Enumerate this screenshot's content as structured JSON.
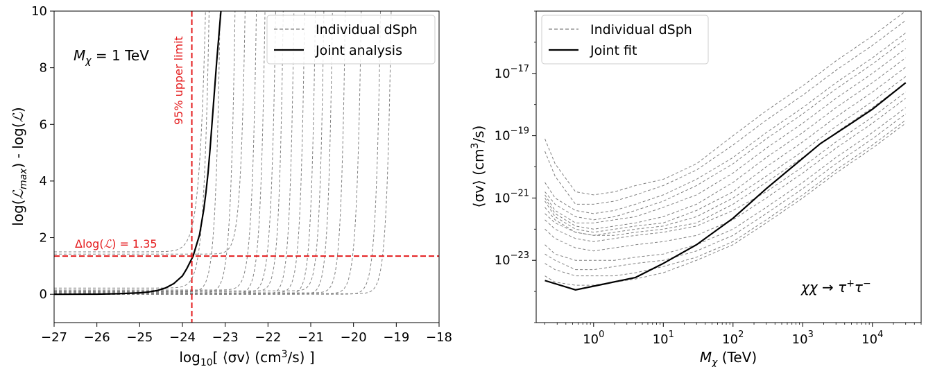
{
  "chart_data": [
    {
      "type": "line",
      "xlabel_parts": [
        "log",
        "10",
        "[ ⟨σv⟩ (cm",
        "3",
        "/s) ]"
      ],
      "ylabel_parts": [
        "log(",
        "ℒ",
        "max",
        ") - log(",
        "ℒ",
        ")"
      ],
      "xlim": [
        -27,
        -18
      ],
      "ylim": [
        -1,
        10
      ],
      "x_ticks": [
        -27,
        -26,
        -25,
        -24,
        -23,
        -22,
        -21,
        -20,
        -19,
        -18
      ],
      "x_tick_labels": [
        "−27",
        "−26",
        "−25",
        "−24",
        "−23",
        "−22",
        "−21",
        "−20",
        "−19",
        "−18"
      ],
      "y_ticks": [
        0,
        2,
        4,
        6,
        8,
        10
      ],
      "y_tick_labels": [
        "0",
        "2",
        "4",
        "6",
        "8",
        "10"
      ],
      "grid": false,
      "legend_position": "top-right",
      "annotations": {
        "mass_parts": [
          "M",
          "χ",
          " = 1 TeV"
        ],
        "delta_parts": [
          "Δlog(",
          "ℒ",
          ") = 1.35"
        ],
        "upper_limit": "95% upper limit"
      },
      "reference_lines": {
        "horizontal": 1.35,
        "vertical": -23.78,
        "color": "#e41a1c"
      },
      "series": [
        {
          "name": "Individual dSph",
          "style": "dashed",
          "color": "#808080",
          "curves": [
            {
              "c": -23.76,
              "w": 0.14,
              "y0": 1.5
            },
            {
              "c": -23.65,
              "w": 0.12,
              "y0": 0.22
            },
            {
              "c": -23.35,
              "w": 0.1,
              "y0": 0.08
            },
            {
              "c": -23.0,
              "w": 0.1,
              "y0": 0.05
            },
            {
              "c": -22.75,
              "w": 0.1,
              "y0": 1.42
            },
            {
              "c": -22.5,
              "w": 0.1,
              "y0": 0.15
            },
            {
              "c": -22.3,
              "w": 0.1,
              "y0": 0.0
            },
            {
              "c": -22.05,
              "w": 0.1,
              "y0": 0.05
            },
            {
              "c": -21.85,
              "w": 0.09,
              "y0": 0.1
            },
            {
              "c": -21.6,
              "w": 0.09,
              "y0": 0.0
            },
            {
              "c": -21.35,
              "w": 0.09,
              "y0": 0.05
            },
            {
              "c": -21.1,
              "w": 0.09,
              "y0": 0.0
            },
            {
              "c": -20.9,
              "w": 0.09,
              "y0": 0.12
            },
            {
              "c": -20.7,
              "w": 0.09,
              "y0": 0.0
            },
            {
              "c": -20.4,
              "w": 0.09,
              "y0": 0.05
            },
            {
              "c": -20.05,
              "w": 0.1,
              "y0": 0.02
            },
            {
              "c": -19.6,
              "w": 0.1,
              "y0": 0.0
            },
            {
              "c": -19.35,
              "w": 0.1,
              "y0": 0.02
            }
          ]
        },
        {
          "name": "Joint analysis",
          "style": "solid",
          "color": "#000000",
          "x": [
            -27,
            -26,
            -25.5,
            -25,
            -24.8,
            -24.6,
            -24.4,
            -24.2,
            -24.0,
            -23.9,
            -23.8,
            -23.75,
            -23.7,
            -23.6,
            -23.5,
            -23.45,
            -23.4,
            -23.35,
            -23.3,
            -23.2,
            -23.1
          ],
          "y": [
            0,
            0.005,
            0.02,
            0.05,
            0.08,
            0.13,
            0.22,
            0.38,
            0.65,
            0.9,
            1.2,
            1.35,
            1.6,
            2.1,
            3.0,
            3.6,
            4.3,
            5.2,
            6.2,
            8.2,
            10.0
          ]
        }
      ]
    },
    {
      "type": "line",
      "xscale": "log",
      "yscale": "log",
      "xlabel_parts": [
        "M",
        "χ",
        " (TeV)"
      ],
      "ylabel_parts": [
        "⟨σv⟩ (cm",
        "3",
        "/s)"
      ],
      "xlim": [
        0.15,
        50000
      ],
      "ylim": [
        1e-25,
        1e-15
      ],
      "x_tick_exponents": [
        0,
        1,
        2,
        3,
        4
      ],
      "y_tick_exponents": [
        -23,
        -21,
        -19,
        -17
      ],
      "x_tick_labels": [
        {
          "base": "10",
          "exp": "0"
        },
        {
          "base": "10",
          "exp": "1"
        },
        {
          "base": "10",
          "exp": "2"
        },
        {
          "base": "10",
          "exp": "3"
        },
        {
          "base": "10",
          "exp": "4"
        }
      ],
      "y_tick_labels": [
        {
          "base": "10",
          "exp": "−23"
        },
        {
          "base": "10",
          "exp": "−21"
        },
        {
          "base": "10",
          "exp": "−19"
        },
        {
          "base": "10",
          "exp": "−17"
        }
      ],
      "grid": false,
      "legend_position": "top-left",
      "annotation_parts": [
        "χχ → τ",
        "+",
        "τ",
        "−"
      ],
      "series": [
        {
          "name": "Individual dSph",
          "style": "dashed",
          "color": "#808080",
          "x": [
            0.2,
            0.28,
            0.55,
            1,
            2,
            4,
            10,
            30,
            100,
            300,
            1000,
            3000,
            10000,
            30000
          ],
          "curves_log10_y": [
            [
              -19.1,
              -19.9,
              -20.8,
              -20.9,
              -20.8,
              -20.6,
              -20.4,
              -19.9,
              -19.0,
              -18.2,
              -17.4,
              -16.6,
              -15.8,
              -15.0
            ],
            [
              -19.5,
              -20.3,
              -21.2,
              -21.2,
              -21.1,
              -20.9,
              -20.6,
              -20.1,
              -19.3,
              -18.5,
              -17.7,
              -16.9,
              -16.1,
              -15.3
            ],
            [
              -20.5,
              -21.0,
              -21.4,
              -21.5,
              -21.4,
              -21.2,
              -20.9,
              -20.4,
              -19.7,
              -18.9,
              -18.1,
              -17.3,
              -16.5,
              -15.7
            ],
            [
              -20.8,
              -21.2,
              -21.6,
              -21.7,
              -21.6,
              -21.4,
              -21.1,
              -20.6,
              -19.9,
              -19.1,
              -18.3,
              -17.5,
              -16.7,
              -15.9
            ],
            [
              -20.9,
              -21.4,
              -21.8,
              -21.8,
              -21.7,
              -21.6,
              -21.3,
              -20.9,
              -20.2,
              -19.4,
              -18.6,
              -17.8,
              -17.0,
              -16.2
            ],
            [
              -21.0,
              -21.5,
              -21.9,
              -22.0,
              -21.9,
              -21.8,
              -21.6,
              -21.2,
              -20.5,
              -19.7,
              -18.9,
              -18.1,
              -17.3,
              -16.5
            ],
            [
              -21.1,
              -21.6,
              -22.0,
              -22.1,
              -22.0,
              -21.9,
              -21.8,
              -21.4,
              -20.8,
              -20.0,
              -19.2,
              -18.4,
              -17.6,
              -16.8
            ],
            [
              -21.3,
              -21.7,
              -22.1,
              -22.2,
              -22.1,
              -22.0,
              -21.9,
              -21.6,
              -21.0,
              -20.3,
              -19.5,
              -18.7,
              -17.9,
              -17.1
            ],
            [
              -21.5,
              -21.8,
              -22.1,
              -22.2,
              -22.2,
              -22.1,
              -22.0,
              -21.8,
              -21.2,
              -20.5,
              -19.7,
              -18.9,
              -18.1,
              -17.3
            ],
            [
              -21.7,
              -22.0,
              -22.3,
              -22.4,
              -22.3,
              -22.2,
              -22.1,
              -21.9,
              -21.4,
              -20.8,
              -20.0,
              -19.2,
              -18.4,
              -17.6
            ],
            [
              -22.0,
              -22.3,
              -22.6,
              -22.7,
              -22.6,
              -22.5,
              -22.4,
              -22.2,
              -21.7,
              -21.0,
              -20.2,
              -19.4,
              -18.6,
              -17.8
            ],
            [
              -22.5,
              -22.8,
              -23.0,
              -23.0,
              -23.0,
              -22.9,
              -22.8,
              -22.5,
              -22.0,
              -21.3,
              -20.5,
              -19.7,
              -18.9,
              -18.1
            ],
            [
              -22.8,
              -23.0,
              -23.3,
              -23.3,
              -23.2,
              -23.1,
              -23.0,
              -22.7,
              -22.2,
              -21.5,
              -20.7,
              -19.9,
              -19.1,
              -18.3
            ],
            [
              -23.1,
              -23.3,
              -23.5,
              -23.5,
              -23.5,
              -23.4,
              -23.2,
              -22.9,
              -22.4,
              -21.7,
              -20.9,
              -20.1,
              -19.3,
              -18.5
            ],
            [
              -23.5,
              -23.7,
              -23.8,
              -23.8,
              -23.7,
              -23.6,
              -23.4,
              -23.0,
              -22.5,
              -21.8,
              -21.0,
              -20.2,
              -19.4,
              -18.6
            ]
          ]
        },
        {
          "name": "Joint fit",
          "style": "solid",
          "color": "#000000",
          "x": [
            0.2,
            0.55,
            1.5,
            4,
            10,
            30,
            100,
            300,
            1800,
            5000,
            10000,
            30000
          ],
          "log10_y": [
            -23.65,
            -23.95,
            -23.75,
            -23.55,
            -23.1,
            -22.5,
            -21.65,
            -20.7,
            -19.25,
            -18.6,
            -18.15,
            -17.3
          ]
        }
      ]
    }
  ]
}
